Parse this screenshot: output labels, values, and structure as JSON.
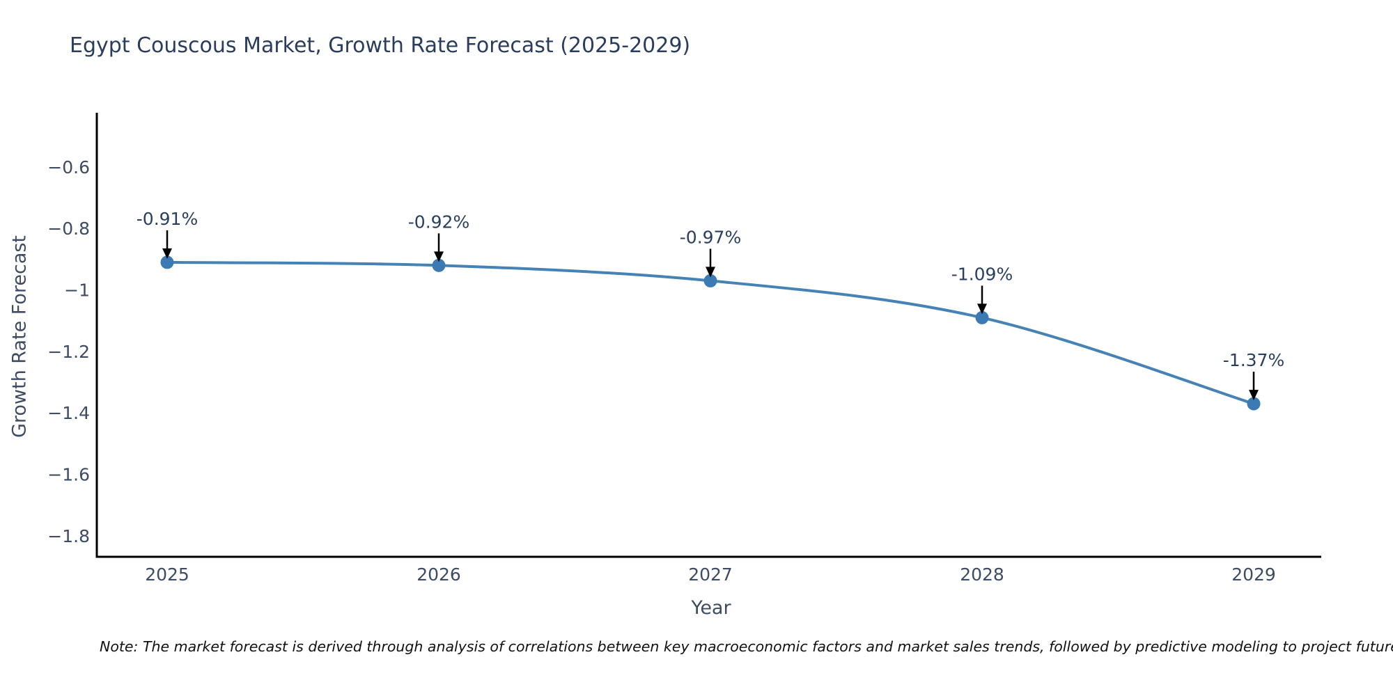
{
  "title": "Egypt Couscous Market, Growth Rate Forecast (2025-2029)",
  "note": "Note: The market forecast is derived through analysis of correlations between key macroeconomic factors and market sales trends, followed by predictive modeling to project future sa",
  "chart_data": {
    "type": "line",
    "title": "Egypt Couscous Market, Growth Rate Forecast (2025-2029)",
    "xlabel": "Year",
    "ylabel": "Growth Rate Forecast",
    "categories": [
      "2025",
      "2026",
      "2027",
      "2028",
      "2029"
    ],
    "x": [
      2025,
      2026,
      2027,
      2028,
      2029
    ],
    "values": [
      -0.91,
      -0.92,
      -0.97,
      -1.09,
      -1.37
    ],
    "point_labels": [
      "-0.91%",
      "-0.92%",
      "-0.97%",
      "-1.09%",
      "-1.37%"
    ],
    "y_ticks": [
      -0.6,
      -0.8,
      -1.0,
      -1.2,
      -1.4,
      -1.6,
      -1.8
    ],
    "y_tick_labels": [
      "−0.6",
      "−0.8",
      "−1",
      "−1.2",
      "−1.4",
      "−1.6",
      "−1.8"
    ],
    "ylim": [
      -1.87,
      -0.42
    ],
    "line_shape": "spline",
    "grid": false,
    "legend": "none",
    "annotations_have_arrows": true,
    "colors": {
      "line": "#4682b4",
      "marker": "#3b7ab3",
      "axis": "#000000",
      "title_text": "#2b3d5f",
      "tick_text": "#3e4c63",
      "annotation_text": "#2a3f5f",
      "arrow": "#000000",
      "background": "#ffffff"
    }
  }
}
